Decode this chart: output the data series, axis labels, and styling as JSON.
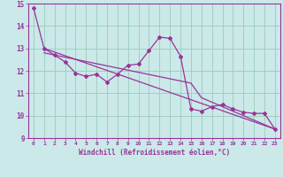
{
  "xlabel": "Windchill (Refroidissement éolien,°C)",
  "background_color": "#cbe9e9",
  "line_color": "#993399",
  "grid_color": "#99ccbb",
  "xlim": [
    -0.5,
    23.5
  ],
  "ylim": [
    9,
    15
  ],
  "xticks": [
    0,
    1,
    2,
    3,
    4,
    5,
    6,
    7,
    8,
    9,
    10,
    11,
    12,
    13,
    14,
    15,
    16,
    17,
    18,
    19,
    20,
    21,
    22,
    23
  ],
  "yticks": [
    9,
    10,
    11,
    12,
    13,
    14,
    15
  ],
  "wavy_x": [
    0,
    1,
    2,
    3,
    4,
    5,
    6,
    7,
    8,
    9,
    10,
    11,
    12,
    13,
    14,
    15,
    16,
    17,
    18,
    19,
    20,
    21,
    22,
    23
  ],
  "wavy_y": [
    14.8,
    13.0,
    12.7,
    12.4,
    11.9,
    11.75,
    11.85,
    11.5,
    11.85,
    12.25,
    12.3,
    12.9,
    13.5,
    13.45,
    12.65,
    10.3,
    10.2,
    10.4,
    10.5,
    10.3,
    10.15,
    10.1,
    10.1,
    9.4
  ],
  "trend1_x": [
    1,
    23
  ],
  "trend1_y": [
    13.0,
    9.4
  ],
  "trend2_x": [
    1,
    15,
    16,
    23
  ],
  "trend2_y": [
    12.8,
    11.45,
    10.8,
    9.4
  ],
  "font_color": "#993399"
}
